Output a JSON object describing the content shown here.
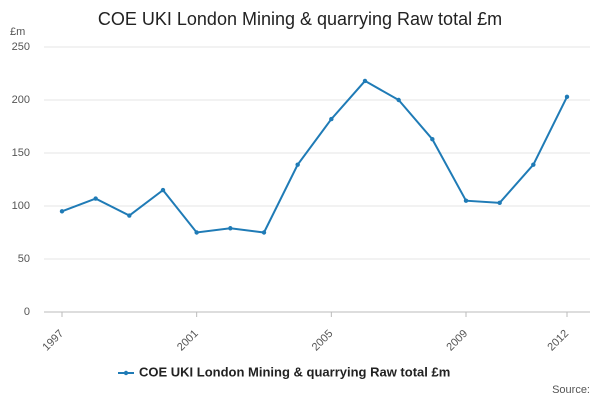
{
  "chart_data": {
    "type": "line",
    "title": "COE UKI London Mining & quarrying Raw total £m",
    "y_unit": "£m",
    "source": "Source:",
    "x": [
      1997,
      1998,
      1999,
      2000,
      2001,
      2002,
      2003,
      2004,
      2005,
      2006,
      2007,
      2008,
      2009,
      2010,
      2011,
      2012
    ],
    "series": [
      {
        "name": "COE UKI London Mining & quarrying Raw total £m",
        "color": "#1f7bb6",
        "values": [
          95,
          107,
          91,
          115,
          75,
          79,
          75,
          139,
          182,
          218,
          200,
          163,
          105,
          103,
          139,
          203
        ]
      }
    ],
    "xlim": [
      1997,
      2012
    ],
    "xticks": [
      1997,
      2001,
      2005,
      2009,
      2012
    ],
    "ylim": [
      0,
      250
    ],
    "yticks": [
      0,
      50,
      100,
      150,
      200,
      250
    ],
    "grid": true,
    "legend": "bottom"
  }
}
